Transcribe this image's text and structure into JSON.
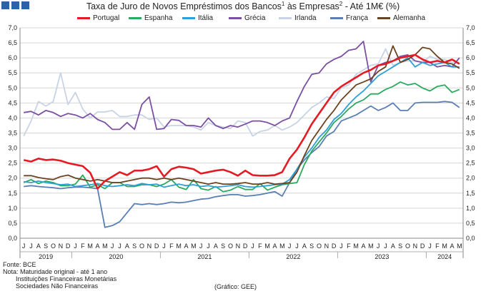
{
  "title": {
    "part1": "Taxa de Juro de Novos Empréstimos dos Bancos",
    "sup1": "1",
    "part2": " às Empresas",
    "sup2": "2",
    "part3": " -  Até 1M€ (%)"
  },
  "colors": {
    "portugal": "#e31b23",
    "espanha": "#2aaa5e",
    "italia": "#2f9fd8",
    "grecia": "#7b4fa3",
    "irlanda": "#c8d3e6",
    "franca": "#5a7fb4",
    "alemanha": "#6b4320",
    "logo": "#2b62a8",
    "grid": "#d6d6d6"
  },
  "chart_data": {
    "type": "line",
    "y_ticks": [
      "0,0",
      "0,5",
      "1,0",
      "1,5",
      "2,0",
      "2,5",
      "3,0",
      "3,5",
      "4,0",
      "4,5",
      "5,0",
      "5,5",
      "6,0",
      "6,5",
      "7,0"
    ],
    "ylim": [
      0,
      7
    ],
    "grid": true,
    "legend_position": "top",
    "month_labels": [
      "J",
      "J",
      "A",
      "S",
      "O",
      "N",
      "D",
      "J",
      "F",
      "M",
      "A",
      "M",
      "J",
      "J",
      "A",
      "S",
      "O",
      "N",
      "D",
      "J",
      "F",
      "M",
      "A",
      "M",
      "J",
      "J",
      "A",
      "S",
      "O",
      "N",
      "D",
      "J",
      "F",
      "M",
      "A",
      "M",
      "J",
      "J",
      "A",
      "S",
      "O",
      "N",
      "D",
      "J",
      "F",
      "M",
      "A",
      "M",
      "J",
      "J",
      "A",
      "S",
      "O",
      "N",
      "D",
      "J",
      "F",
      "M",
      "A",
      "M"
    ],
    "years": [
      {
        "label": "2019",
        "start": 0,
        "end": 6
      },
      {
        "label": "2020",
        "start": 7,
        "end": 18
      },
      {
        "label": "2021",
        "start": 19,
        "end": 30
      },
      {
        "label": "2022",
        "start": 31,
        "end": 42
      },
      {
        "label": "2023",
        "start": 43,
        "end": 54
      },
      {
        "label": "2024",
        "start": 55,
        "end": 59
      }
    ],
    "series": [
      {
        "key": "irlanda",
        "name": "Irlanda",
        "color": "#c8d3e6",
        "values": [
          3.4,
          3.9,
          4.55,
          4.4,
          4.55,
          5.5,
          4.45,
          4.85,
          4.3,
          4.0,
          4.2,
          4.2,
          4.25,
          4.05,
          4.05,
          4.1,
          4.1,
          3.95,
          4.0,
          3.7,
          3.75,
          3.75,
          3.75,
          3.7,
          3.6,
          3.85,
          3.75,
          3.7,
          3.65,
          3.9,
          3.85,
          3.4,
          3.55,
          3.6,
          3.75,
          3.6,
          3.7,
          3.85,
          4.1,
          4.35,
          4.5,
          4.7,
          4.65,
          5.0,
          5.1,
          5.45,
          5.6,
          5.75,
          5.8,
          6.3,
          5.75,
          5.85,
          5.9,
          5.9,
          5.85,
          6.05,
          5.95,
          5.95,
          5.85,
          5.85
        ]
      },
      {
        "key": "grecia",
        "name": "Grécia",
        "color": "#7b4fa3",
        "values": [
          4.18,
          4.22,
          4.1,
          4.25,
          4.18,
          4.05,
          4.15,
          4.1,
          4.0,
          4.15,
          3.95,
          3.85,
          3.62,
          3.62,
          3.85,
          3.62,
          4.45,
          4.7,
          3.62,
          3.65,
          3.95,
          3.92,
          3.75,
          3.75,
          3.7,
          4.0,
          3.75,
          3.65,
          3.75,
          3.7,
          3.8,
          3.9,
          3.9,
          3.85,
          3.75,
          3.9,
          4.0,
          4.55,
          5.05,
          5.45,
          5.5,
          5.8,
          5.95,
          6.05,
          6.25,
          6.3,
          6.55,
          5.2,
          5.75,
          5.85,
          5.9,
          6.05,
          6.1,
          5.9,
          5.85,
          5.85,
          5.7,
          5.75,
          5.7,
          6.0
        ]
      },
      {
        "key": "franca",
        "name": "França",
        "color": "#5a7fb4",
        "values": [
          1.72,
          1.75,
          1.72,
          1.7,
          1.68,
          1.65,
          1.68,
          1.7,
          1.7,
          1.68,
          1.65,
          0.36,
          0.42,
          0.55,
          0.85,
          1.15,
          1.12,
          1.15,
          1.12,
          1.15,
          1.2,
          1.18,
          1.2,
          1.25,
          1.3,
          1.32,
          1.38,
          1.42,
          1.45,
          1.45,
          1.4,
          1.42,
          1.45,
          1.5,
          1.55,
          1.4,
          1.85,
          2.3,
          2.6,
          2.85,
          3.05,
          3.4,
          3.55,
          3.9,
          4.0,
          4.1,
          4.25,
          4.4,
          4.25,
          4.35,
          4.5,
          4.25,
          4.25,
          4.5,
          4.52,
          4.52,
          4.52,
          4.55,
          4.52,
          4.35
        ]
      },
      {
        "key": "espanha",
        "name": "Espanha",
        "color": "#2aaa5e",
        "values": [
          1.85,
          1.95,
          1.82,
          1.9,
          1.85,
          1.75,
          1.75,
          1.8,
          2.1,
          1.7,
          1.78,
          1.65,
          1.85,
          1.85,
          1.72,
          1.72,
          1.78,
          1.78,
          1.72,
          1.8,
          1.95,
          1.7,
          1.62,
          1.95,
          1.65,
          1.6,
          1.72,
          1.55,
          1.6,
          1.72,
          1.62,
          1.62,
          1.82,
          1.6,
          1.7,
          1.78,
          1.82,
          1.85,
          2.45,
          2.9,
          3.2,
          3.5,
          3.85,
          4.05,
          4.3,
          4.5,
          4.6,
          4.8,
          4.8,
          4.95,
          5.05,
          5.2,
          5.1,
          5.15,
          5.0,
          4.9,
          5.05,
          5.1,
          4.85,
          4.95
        ]
      },
      {
        "key": "italia",
        "name": "Itália",
        "color": "#2f9fd8",
        "values": [
          1.88,
          1.85,
          1.9,
          1.85,
          1.82,
          1.78,
          1.8,
          1.72,
          1.75,
          1.78,
          1.82,
          1.75,
          1.72,
          1.75,
          1.78,
          1.75,
          1.82,
          1.78,
          1.8,
          1.7,
          1.75,
          1.8,
          1.75,
          1.78,
          1.72,
          1.75,
          1.7,
          1.72,
          1.75,
          1.78,
          1.72,
          1.7,
          1.72,
          1.75,
          1.78,
          1.8,
          1.95,
          2.3,
          2.7,
          3.0,
          3.35,
          3.6,
          3.95,
          4.15,
          4.45,
          4.7,
          4.9,
          5.15,
          5.4,
          5.55,
          5.7,
          5.85,
          6.0,
          5.7,
          5.85,
          5.75,
          5.8,
          5.85,
          5.7,
          5.7
        ]
      },
      {
        "key": "alemanha",
        "name": "Alemanha",
        "color": "#6b4320",
        "values": [
          2.08,
          2.08,
          2.02,
          1.98,
          1.95,
          2.05,
          2.1,
          2.0,
          1.95,
          1.9,
          1.95,
          1.9,
          1.85,
          1.85,
          1.9,
          1.95,
          2.0,
          2.0,
          1.95,
          2.0,
          1.95,
          2.0,
          1.95,
          1.9,
          1.85,
          1.8,
          1.85,
          1.8,
          1.8,
          1.82,
          1.85,
          1.8,
          1.8,
          1.85,
          1.8,
          1.82,
          1.85,
          2.2,
          2.75,
          3.25,
          3.6,
          3.95,
          4.25,
          4.6,
          4.85,
          5.1,
          5.2,
          5.3,
          5.55,
          5.7,
          6.4,
          5.85,
          5.95,
          6.1,
          6.35,
          6.3,
          6.05,
          5.85,
          5.8,
          5.65
        ]
      },
      {
        "key": "portugal",
        "name": "Portugal",
        "color": "#e31b23",
        "values": [
          2.6,
          2.55,
          2.65,
          2.6,
          2.62,
          2.58,
          2.5,
          2.45,
          2.4,
          2.18,
          1.65,
          1.9,
          2.05,
          2.2,
          2.1,
          2.25,
          2.25,
          2.3,
          2.4,
          2.05,
          2.3,
          2.38,
          2.35,
          2.3,
          2.15,
          2.2,
          2.25,
          2.28,
          2.2,
          2.08,
          2.25,
          2.1,
          2.08,
          2.08,
          2.1,
          2.2,
          2.65,
          2.95,
          3.35,
          3.8,
          4.15,
          4.5,
          4.85,
          5.05,
          5.2,
          5.35,
          5.5,
          5.6,
          5.75,
          5.8,
          5.9,
          6.0,
          6.05,
          6.1,
          5.95,
          5.85,
          5.9,
          5.85,
          5.95,
          5.8
        ]
      }
    ]
  },
  "notes": {
    "source": "Fonte: BCE",
    "note": "Nota: Maturidade original - até 1 ano",
    "note1": "Instituições Financeiras Monetárias",
    "note2": "Sociedades Não Financeiras"
  },
  "credit": "(Gráfico: GEE)"
}
